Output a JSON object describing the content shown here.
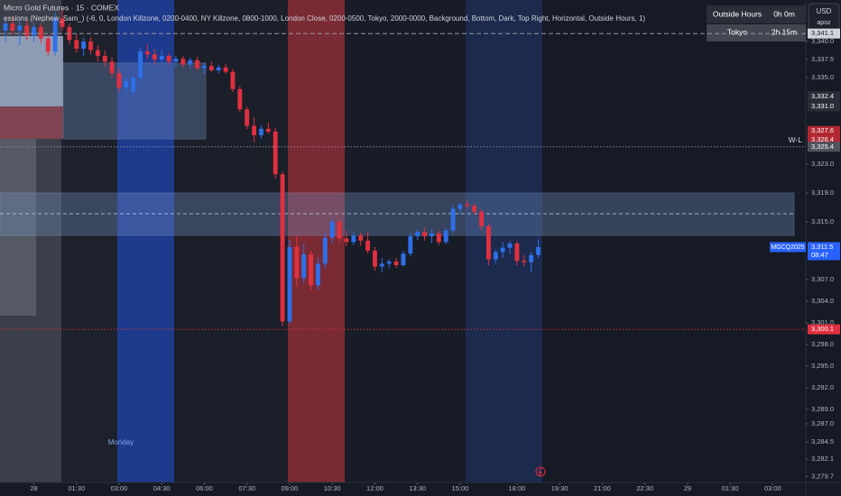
{
  "chart_data": {
    "type": "candlestick",
    "title": "Micro Gold Futures · 15 · COMEX",
    "subtitle": "essions (Nephew_Sam_) (-6, 0, London Killzone, 0200-0400, NY Killzone, 0800-1000, London Close, 0200-0500, Tokyo, 2000-0000, Background, Bottom, Dark, Top Right, Horizontal, Outside Hours, 1)",
    "up_color": "#2f6fe8",
    "down_color": "#e0303f",
    "open": [
      3341.5,
      3342.5,
      3341.5,
      3342.2,
      3340.8,
      3342.0,
      3340.4,
      3338.6,
      3343.2,
      3342.0,
      3340.2,
      3339.0,
      3340.0,
      3338.8,
      3338.0,
      3337.2,
      3335.6,
      3333.6,
      3333.0,
      3335.0,
      3338.6,
      3338.2,
      3337.5,
      3338.0,
      3337.2,
      3337.6,
      3336.8,
      3337.4,
      3336.3,
      3336.6,
      3336.0,
      3336.4,
      3335.8,
      3333.4,
      3330.6,
      3328.3,
      3327.0,
      3327.9,
      3327.5,
      3321.6,
      3301.2,
      3311.5,
      3307.2,
      3310.5,
      3306.2,
      3309.2,
      3312.8,
      3315.0,
      3312.7,
      3312.2,
      3313.1,
      3312.4,
      3311.0,
      3308.8,
      3309.2,
      3309.5,
      3309.0,
      3310.6,
      3313.0,
      3313.6,
      3313.0,
      3313.4,
      3312.2,
      3313.8,
      3316.8,
      3317.4,
      3317.2,
      3316.4,
      3314.4,
      3309.8,
      3310.8,
      3311.4,
      3312.0,
      3309.6,
      3309.4,
      3310.4
    ],
    "high": [
      3343.2,
      3343.5,
      3342.8,
      3343.0,
      3342.6,
      3342.5,
      3340.9,
      3344.0,
      3344.5,
      3342.5,
      3341.0,
      3340.5,
      3340.6,
      3339.5,
      3338.8,
      3337.8,
      3336.2,
      3335.0,
      3335.3,
      3339.2,
      3339.6,
      3338.9,
      3338.8,
      3338.4,
      3338.0,
      3338.0,
      3337.8,
      3337.9,
      3337.0,
      3337.2,
      3336.8,
      3336.9,
      3336.2,
      3333.8,
      3331.0,
      3329.5,
      3328.4,
      3328.8,
      3328.0,
      3322.0,
      3312.5,
      3313.0,
      3312.0,
      3311.0,
      3310.0,
      3313.5,
      3315.5,
      3315.4,
      3313.8,
      3313.6,
      3313.5,
      3313.6,
      3311.5,
      3310.0,
      3309.8,
      3310.0,
      3311.0,
      3313.4,
      3314.0,
      3314.2,
      3314.0,
      3313.8,
      3314.2,
      3317.2,
      3317.6,
      3318.0,
      3317.6,
      3316.8,
      3314.8,
      3311.2,
      3312.2,
      3312.3,
      3312.4,
      3310.4,
      3310.8,
      3312.6
    ],
    "low": [
      3340.0,
      3341.0,
      3339.5,
      3340.2,
      3340.0,
      3339.8,
      3338.0,
      3338.0,
      3341.5,
      3339.6,
      3338.4,
      3338.0,
      3338.2,
      3337.2,
      3336.5,
      3335.0,
      3333.0,
      3332.8,
      3332.4,
      3334.6,
      3337.6,
      3336.8,
      3337.0,
      3336.8,
      3336.5,
      3336.4,
      3336.2,
      3336.0,
      3335.5,
      3335.8,
      3335.6,
      3335.5,
      3333.0,
      3330.2,
      3327.8,
      3326.0,
      3326.5,
      3327.2,
      3321.0,
      3300.5,
      3300.8,
      3306.0,
      3306.5,
      3305.5,
      3305.6,
      3308.5,
      3312.0,
      3312.2,
      3311.6,
      3311.8,
      3311.7,
      3310.6,
      3308.2,
      3308.0,
      3308.6,
      3308.6,
      3308.8,
      3310.2,
      3312.5,
      3312.4,
      3312.0,
      3311.8,
      3311.9,
      3313.4,
      3316.0,
      3316.8,
      3316.0,
      3313.8,
      3309.0,
      3309.2,
      3310.0,
      3310.6,
      3309.0,
      3308.8,
      3308.0,
      3310.0
    ],
    "close": [
      3342.5,
      3341.5,
      3342.2,
      3340.8,
      3342.0,
      3340.4,
      3338.6,
      3343.2,
      3342.0,
      3340.2,
      3339.0,
      3340.0,
      3338.8,
      3338.0,
      3337.2,
      3335.6,
      3333.6,
      3334.5,
      3335.0,
      3338.6,
      3338.2,
      3337.5,
      3338.0,
      3337.2,
      3337.6,
      3336.8,
      3337.4,
      3336.3,
      3336.6,
      3336.0,
      3336.4,
      3335.8,
      3333.4,
      3330.6,
      3328.3,
      3327.0,
      3327.9,
      3327.5,
      3321.6,
      3301.2,
      3311.5,
      3307.2,
      3310.5,
      3306.2,
      3309.2,
      3312.8,
      3315.0,
      3312.7,
      3312.2,
      3313.1,
      3312.4,
      3311.0,
      3308.8,
      3309.2,
      3309.5,
      3309.0,
      3310.6,
      3313.0,
      3313.6,
      3313.0,
      3313.4,
      3312.2,
      3313.8,
      3316.8,
      3317.4,
      3317.2,
      3316.4,
      3314.4,
      3309.8,
      3310.8,
      3311.4,
      3312.0,
      3309.6,
      3309.4,
      3310.4,
      3311.5
    ],
    "xlim": [
      -0.762,
      111
    ],
    "ylim": [
      3278.875,
      3345.75
    ],
    "xticks": [
      {
        "value": 4,
        "label": "28"
      },
      {
        "value": 10,
        "label": "01:30"
      },
      {
        "value": 16,
        "label": "03:00"
      },
      {
        "value": 22,
        "label": "04:30"
      },
      {
        "value": 28,
        "label": "06:00"
      },
      {
        "value": 34,
        "label": "07:30"
      },
      {
        "value": 40,
        "label": "09:00"
      },
      {
        "value": 46,
        "label": "10:30"
      },
      {
        "value": 52,
        "label": "12:00"
      },
      {
        "value": 58,
        "label": "13:30"
      },
      {
        "value": 64,
        "label": "15:00"
      },
      {
        "value": 72,
        "label": "18:00"
      },
      {
        "value": 78,
        "label": "19:30"
      },
      {
        "value": 84,
        "label": "21:00"
      },
      {
        "value": 90,
        "label": "22:30"
      },
      {
        "value": 96,
        "label": "29"
      },
      {
        "value": 102,
        "label": "01:30"
      },
      {
        "value": 108,
        "label": "03:00"
      }
    ],
    "yticks": [
      {
        "value": 3340.0,
        "label": "3,340.0"
      },
      {
        "value": 3337.5,
        "label": "3,337.5"
      },
      {
        "value": 3335.0,
        "label": "3,335.0"
      },
      {
        "value": 3323.0,
        "label": "3,323.0"
      },
      {
        "value": 3319.0,
        "label": "3,319.0"
      },
      {
        "value": 3315.0,
        "label": "3,315.0"
      },
      {
        "value": 3307.0,
        "label": "3,307.0"
      },
      {
        "value": 3304.0,
        "label": "3,304.0"
      },
      {
        "value": 3301.0,
        "label": "3,301.0"
      },
      {
        "value": 3298.0,
        "label": "3,298.0"
      },
      {
        "value": 3295.0,
        "label": "3,295.0"
      },
      {
        "value": 3292.0,
        "label": "3,292.0"
      },
      {
        "value": 3289.0,
        "label": "3,289.0"
      },
      {
        "value": 3287.0,
        "label": "3,287.0"
      },
      {
        "value": 3284.5,
        "label": "3,284.5"
      },
      {
        "value": 3282.1,
        "label": "3,282.1"
      },
      {
        "value": 3279.7,
        "label": "3,279.7"
      }
    ],
    "price_labels": [
      {
        "value": 3341.1,
        "label": "3,341.1",
        "color": "#d1d4dc",
        "line": "dashed"
      },
      {
        "value": 3332.4,
        "label": "3,332.4",
        "color": "#2a2e39"
      },
      {
        "value": 3331.0,
        "label": "3,331.0",
        "color": "#2a2e39"
      },
      {
        "value": 3327.6,
        "label": "3,327.6",
        "color": "#b22833"
      },
      {
        "value": 3326.4,
        "label": "3,326.4",
        "color": "#b22833"
      },
      {
        "value": 3325.4,
        "label": "3,325.4",
        "color": "#50535e",
        "line": "dotted",
        "name": "W-L"
      },
      {
        "value": 3300.1,
        "label": "3,300.1",
        "color": "#e0303f",
        "line": "dotted"
      }
    ],
    "last_price": {
      "symbol": "MGCQ2025",
      "value": 3311.5,
      "label": "3,311.5",
      "countdown": "08:47",
      "color": "#2962ff"
    },
    "annotations": [
      "Monday"
    ],
    "table": [
      [
        "Outside Hours",
        "0h 0m"
      ],
      [
        "Tokyo",
        "2h 15m"
      ]
    ],
    "currency": "USD",
    "unit": "apoz"
  }
}
